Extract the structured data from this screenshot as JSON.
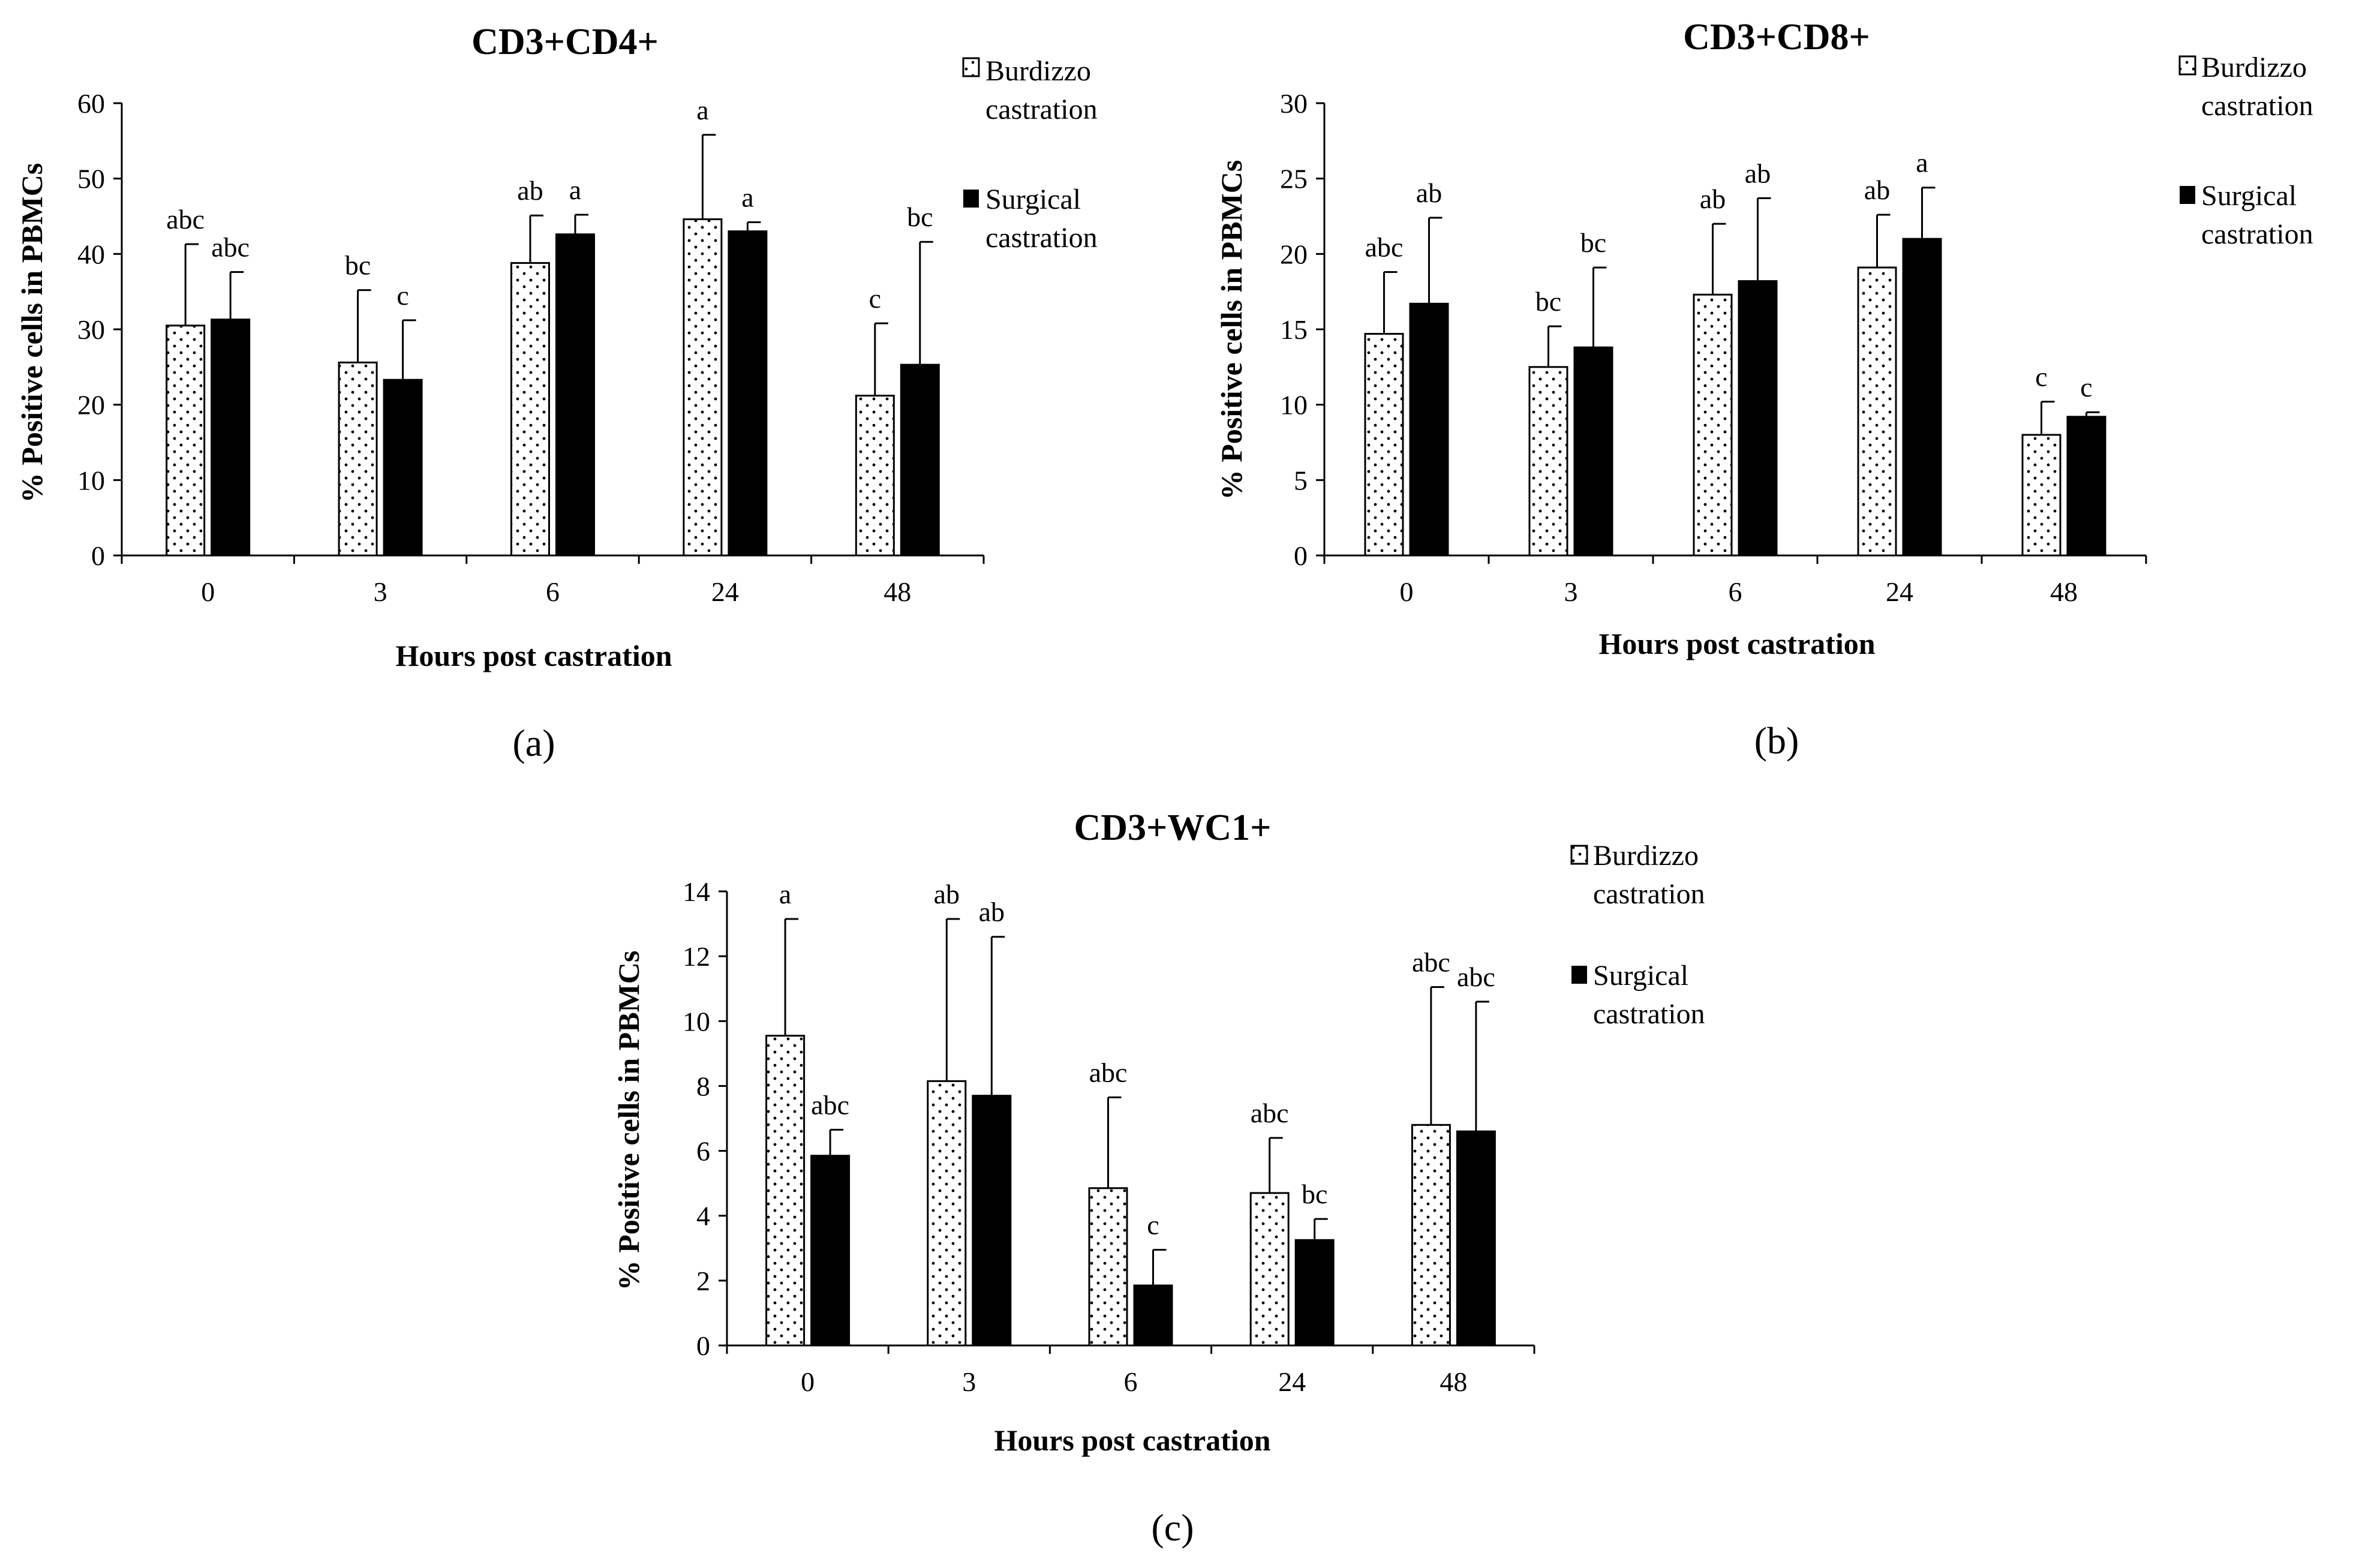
{
  "figure": {
    "panels": [
      "(a)",
      "(b)",
      "(c)"
    ]
  },
  "legend": {
    "burdizzo": [
      "Burdizzo",
      "castration"
    ],
    "surgical": [
      "Surgical",
      "castration"
    ]
  },
  "colors": {
    "burdizzo_fill": "#ffffff",
    "burdizzo_dots": "#000000",
    "surgical_fill": "#000000",
    "axis": "#000000"
  },
  "chart_data": [
    {
      "type": "bar",
      "panel": "(a)",
      "title": "CD3+CD4+",
      "xlabel": "Hours post castration",
      "ylabel": "% Positive cells in PBMCs",
      "categories": [
        "0",
        "3",
        "6",
        "24",
        "48"
      ],
      "ylim": [
        0,
        60
      ],
      "yticks": [
        0,
        10,
        20,
        30,
        40,
        50,
        60
      ],
      "series": [
        {
          "name": "Burdizzo castration",
          "values": [
            30.5,
            25.6,
            38.8,
            44.6,
            21.2
          ],
          "error": [
            10.8,
            9.6,
            6.3,
            11.2,
            9.6
          ],
          "labels": [
            "abc",
            "bc",
            "ab",
            "a",
            "c"
          ]
        },
        {
          "name": "Surgical castration",
          "values": [
            31.3,
            23.3,
            42.6,
            43.0,
            25.3
          ],
          "error": [
            6.3,
            7.9,
            2.6,
            1.2,
            16.3
          ],
          "labels": [
            "abc",
            "c",
            "a",
            "a",
            "bc"
          ]
        }
      ]
    },
    {
      "type": "bar",
      "panel": "(b)",
      "title": "CD3+CD8+",
      "xlabel": "Hours post castration",
      "ylabel": "% Positive cells in PBMCs",
      "categories": [
        "0",
        "3",
        "6",
        "24",
        "48"
      ],
      "ylim": [
        0,
        30
      ],
      "yticks": [
        0,
        5,
        10,
        15,
        20,
        25,
        30
      ],
      "series": [
        {
          "name": "Burdizzo castration",
          "values": [
            14.7,
            12.5,
            17.3,
            19.1,
            8.0
          ],
          "error": [
            4.1,
            2.7,
            4.7,
            3.5,
            2.2
          ],
          "labels": [
            "abc",
            "bc",
            "ab",
            "ab",
            "c"
          ]
        },
        {
          "name": "Surgical castration",
          "values": [
            16.7,
            13.8,
            18.2,
            21.0,
            9.2
          ],
          "error": [
            5.7,
            5.3,
            5.5,
            3.4,
            0.3
          ],
          "labels": [
            "ab",
            "bc",
            "ab",
            "a",
            "c"
          ]
        }
      ]
    },
    {
      "type": "bar",
      "panel": "(c)",
      "title": "CD3+WC1+",
      "xlabel": "Hours post castration",
      "ylabel": "% Positive cells in PBMCs",
      "categories": [
        "0",
        "3",
        "6",
        "24",
        "48"
      ],
      "ylim": [
        0,
        14
      ],
      "yticks": [
        0,
        2,
        4,
        6,
        8,
        10,
        12,
        14
      ],
      "series": [
        {
          "name": "Burdizzo castration",
          "values": [
            9.55,
            8.15,
            4.85,
            4.7,
            6.8
          ],
          "error": [
            3.6,
            5.0,
            2.8,
            1.7,
            4.25
          ],
          "labels": [
            "a",
            "ab",
            "abc",
            "abc",
            "abc"
          ]
        },
        {
          "name": "Surgical castration",
          "values": [
            5.85,
            7.7,
            1.85,
            3.25,
            6.6
          ],
          "error": [
            0.8,
            4.9,
            1.1,
            0.65,
            4.0
          ],
          "labels": [
            "abc",
            "ab",
            "c",
            "bc",
            "abc"
          ]
        }
      ]
    }
  ]
}
